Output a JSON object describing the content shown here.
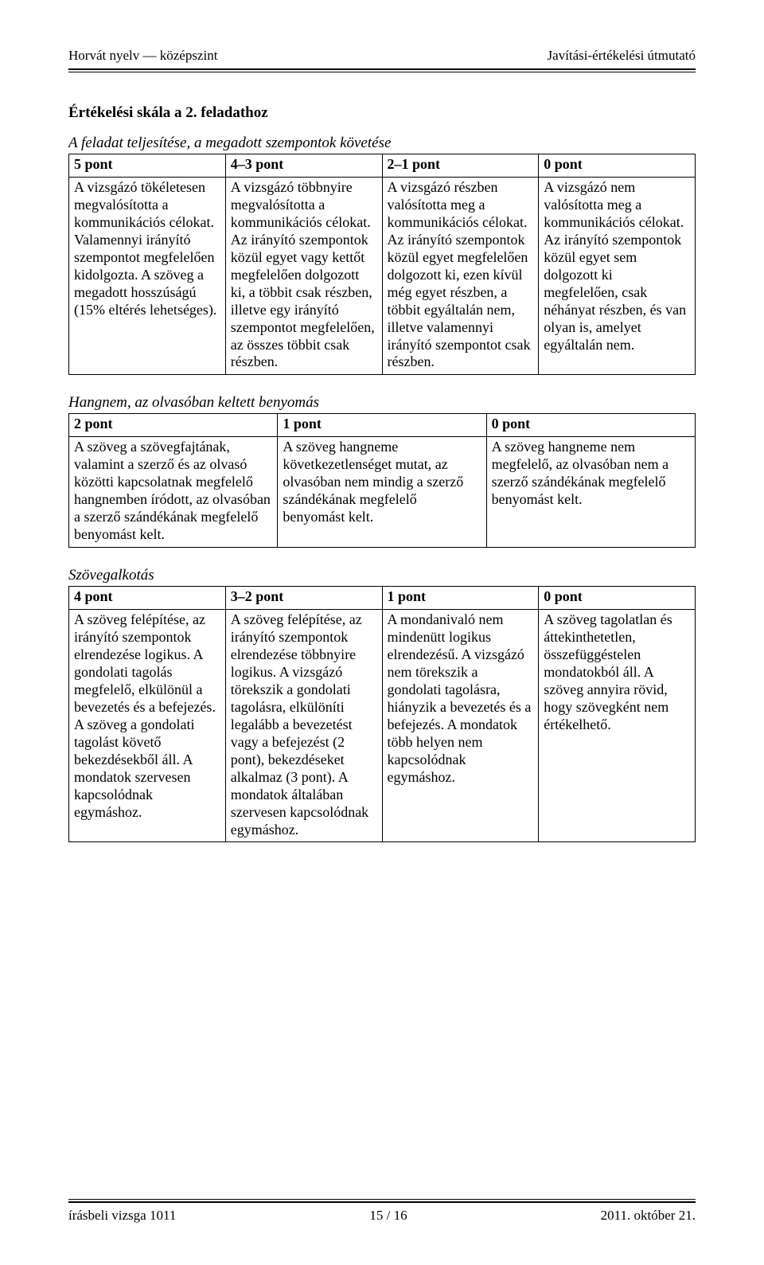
{
  "header": {
    "left": "Horvát nyelv — középszint",
    "right": "Javítási-értékelési útmutató"
  },
  "title": "Értékelési skála a 2. feladathoz",
  "section1": {
    "subtitle": "A feladat teljesítése, a megadott szempontok követése",
    "cols": [
      "5 pont",
      "4–3 pont",
      "2–1 pont",
      "0 pont"
    ],
    "cells": [
      "A vizsgázó tökéletesen megvalósította a kommunikációs célokat. Valamennyi irányító szempontot megfelelően kidolgozta. A szöveg a megadott hosszúságú (15% eltérés lehetséges).",
      "A vizsgázó többnyire megvalósította a kommunikációs célokat. Az irányító szempontok közül egyet vagy kettőt megfelelően dolgozott ki, a többit csak részben, illetve egy irányító szempontot megfelelően, az összes többit csak részben.",
      "A vizsgázó részben valósította meg a kommunikációs célokat. Az irányító szempontok közül egyet megfelelően dolgozott ki, ezen kívül még egyet részben, a többit egyáltalán nem, illetve valamennyi irányító szempontot csak részben.",
      "A vizsgázó nem valósította meg a kommunikációs célokat. Az irányító szempontok közül egyet sem dolgozott ki megfelelően, csak néhányat részben, és van olyan is, amelyet egyáltalán nem."
    ]
  },
  "section2": {
    "subtitle": "Hangnem, az olvasóban keltett benyomás",
    "cols": [
      "2 pont",
      "1 pont",
      "0 pont"
    ],
    "cells": [
      "A szöveg a szövegfajtának, valamint a szerző és az olvasó közötti kapcsolatnak megfelelő hangnemben íródott, az olvasóban a szerző szándékának megfelelő benyomást kelt.",
      "A szöveg hangneme következetlenséget mutat, az olvasóban nem mindig a szerző szándékának megfelelő benyomást kelt.",
      "A szöveg hangneme nem megfelelő, az olvasóban nem a szerző szándékának megfelelő benyomást kelt."
    ]
  },
  "section3": {
    "subtitle": "Szövegalkotás",
    "cols": [
      "4 pont",
      "3–2 pont",
      "1 pont",
      "0 pont"
    ],
    "cells": [
      "A szöveg felépítése, az irányító szempontok elrendezése logikus. A gondolati tagolás megfelelő, elkülönül a bevezetés és a befejezés. A szöveg a gondolati tagolást követő bekezdésekből áll. A mondatok szervesen kapcsolódnak egymáshoz.",
      "A szöveg felépítése, az irányító szempontok elrendezése többnyire logikus. A vizsgázó törekszik a gondolati tagolásra, elkülöníti legalább a bevezetést vagy a befejezést (2 pont), bekezdéseket alkalmaz (3 pont). A mondatok általában szervesen kapcsolódnak egymáshoz.",
      "A mondanivaló nem mindenütt logikus elrendezésű. A vizsgázó nem törekszik a gondolati tagolásra, hiányzik a bevezetés és a befejezés. A mondatok több helyen nem kapcsolódnak egymáshoz.",
      "A szöveg tagolatlan és áttekinthetetlen, összefüggéstelen mondatokból áll. A szöveg annyira rövid, hogy szövegként nem értékelhető."
    ]
  },
  "footer": {
    "left": "írásbeli vizsga 1011",
    "center": "15 / 16",
    "right": "2011. október 21."
  }
}
